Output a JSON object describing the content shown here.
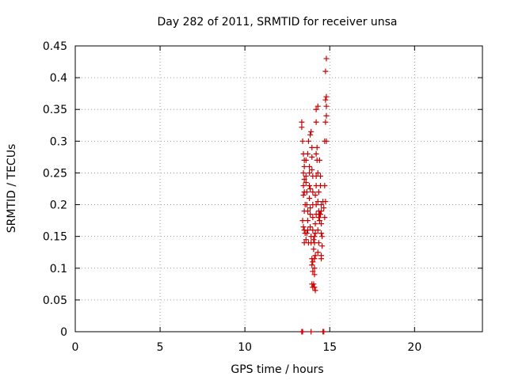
{
  "chart_data": {
    "type": "scatter",
    "title": "Day 282 of 2011, SRMTID for receiver unsa",
    "xlabel": "GPS time / hours",
    "ylabel": "SRMTID / TECUs",
    "xlim": [
      0,
      24
    ],
    "ylim": [
      0,
      0.45
    ],
    "xticks": [
      0,
      5,
      10,
      15,
      20
    ],
    "yticks": [
      0,
      0.05,
      0.1,
      0.15,
      0.2,
      0.25,
      0.3,
      0.35,
      0.4,
      0.45
    ],
    "xtick_labels": [
      "0",
      "5",
      "10",
      "15",
      "20"
    ],
    "ytick_labels": [
      "0",
      "0.05",
      "0.1",
      "0.15",
      "0.2",
      "0.25",
      "0.3",
      "0.35",
      "0.4",
      "0.45"
    ],
    "grid": true,
    "marker": "+",
    "color": "#cc0000",
    "series": [
      {
        "name": "SRMTID",
        "points": [
          [
            13.35,
            0.0
          ],
          [
            13.4,
            0.0
          ],
          [
            13.9,
            0.0
          ],
          [
            14.6,
            0.0
          ],
          [
            14.65,
            0.0
          ],
          [
            13.35,
            0.33
          ],
          [
            13.35,
            0.322
          ],
          [
            13.4,
            0.3
          ],
          [
            13.45,
            0.28
          ],
          [
            13.5,
            0.27
          ],
          [
            13.5,
            0.26
          ],
          [
            13.45,
            0.25
          ],
          [
            13.5,
            0.24
          ],
          [
            13.45,
            0.23
          ],
          [
            13.5,
            0.22
          ],
          [
            13.45,
            0.215
          ],
          [
            13.55,
            0.2
          ],
          [
            13.5,
            0.19
          ],
          [
            13.4,
            0.175
          ],
          [
            13.45,
            0.165
          ],
          [
            13.5,
            0.16
          ],
          [
            13.55,
            0.155
          ],
          [
            13.5,
            0.14
          ],
          [
            13.6,
            0.145
          ],
          [
            13.6,
            0.27
          ],
          [
            13.6,
            0.245
          ],
          [
            13.6,
            0.235
          ],
          [
            13.65,
            0.22
          ],
          [
            13.65,
            0.2
          ],
          [
            13.7,
            0.19
          ],
          [
            13.7,
            0.175
          ],
          [
            13.7,
            0.16
          ],
          [
            13.65,
            0.155
          ],
          [
            13.75,
            0.14
          ],
          [
            13.7,
            0.28
          ],
          [
            13.75,
            0.3
          ],
          [
            13.8,
            0.26
          ],
          [
            13.8,
            0.25
          ],
          [
            13.8,
            0.23
          ],
          [
            13.85,
            0.225
          ],
          [
            13.8,
            0.21
          ],
          [
            13.85,
            0.195
          ],
          [
            13.85,
            0.185
          ],
          [
            13.85,
            0.165
          ],
          [
            13.9,
            0.15
          ],
          [
            13.9,
            0.14
          ],
          [
            13.85,
            0.31
          ],
          [
            13.9,
            0.315
          ],
          [
            13.95,
            0.29
          ],
          [
            13.95,
            0.275
          ],
          [
            13.95,
            0.255
          ],
          [
            14.0,
            0.245
          ],
          [
            14.0,
            0.22
          ],
          [
            14.0,
            0.2
          ],
          [
            14.0,
            0.18
          ],
          [
            14.0,
            0.16
          ],
          [
            14.05,
            0.145
          ],
          [
            14.05,
            0.13
          ],
          [
            13.95,
            0.115
          ],
          [
            14.0,
            0.11
          ],
          [
            13.95,
            0.105
          ],
          [
            14.0,
            0.095
          ],
          [
            13.95,
            0.075
          ],
          [
            14.0,
            0.07
          ],
          [
            14.05,
            0.075
          ],
          [
            14.1,
            0.07
          ],
          [
            14.15,
            0.065
          ],
          [
            14.1,
            0.09
          ],
          [
            14.1,
            0.1
          ],
          [
            14.1,
            0.115
          ],
          [
            14.15,
            0.12
          ],
          [
            14.1,
            0.14
          ],
          [
            14.1,
            0.15
          ],
          [
            14.15,
            0.155
          ],
          [
            14.15,
            0.17
          ],
          [
            14.2,
            0.185
          ],
          [
            14.2,
            0.2
          ],
          [
            14.15,
            0.215
          ],
          [
            14.2,
            0.23
          ],
          [
            14.2,
            0.245
          ],
          [
            14.25,
            0.27
          ],
          [
            14.2,
            0.28
          ],
          [
            14.25,
            0.29
          ],
          [
            14.2,
            0.33
          ],
          [
            14.2,
            0.35
          ],
          [
            14.3,
            0.355
          ],
          [
            14.3,
            0.25
          ],
          [
            14.35,
            0.22
          ],
          [
            14.3,
            0.205
          ],
          [
            14.35,
            0.19
          ],
          [
            14.35,
            0.18
          ],
          [
            14.4,
            0.175
          ],
          [
            14.4,
            0.185
          ],
          [
            14.3,
            0.16
          ],
          [
            14.35,
            0.14
          ],
          [
            14.4,
            0.27
          ],
          [
            14.45,
            0.245
          ],
          [
            14.45,
            0.23
          ],
          [
            14.5,
            0.2
          ],
          [
            14.45,
            0.185
          ],
          [
            14.5,
            0.19
          ],
          [
            14.5,
            0.17
          ],
          [
            14.5,
            0.155
          ],
          [
            14.55,
            0.15
          ],
          [
            14.55,
            0.135
          ],
          [
            14.5,
            0.115
          ],
          [
            14.5,
            0.12
          ],
          [
            14.3,
            0.125
          ],
          [
            14.6,
            0.205
          ],
          [
            14.65,
            0.195
          ],
          [
            14.7,
            0.23
          ],
          [
            14.75,
            0.33
          ],
          [
            14.8,
            0.34
          ],
          [
            14.75,
            0.365
          ],
          [
            14.8,
            0.37
          ],
          [
            14.8,
            0.355
          ],
          [
            14.7,
            0.3
          ],
          [
            14.8,
            0.3
          ],
          [
            14.75,
            0.41
          ],
          [
            14.8,
            0.43
          ],
          [
            14.75,
            0.205
          ],
          [
            14.7,
            0.18
          ]
        ]
      }
    ]
  }
}
